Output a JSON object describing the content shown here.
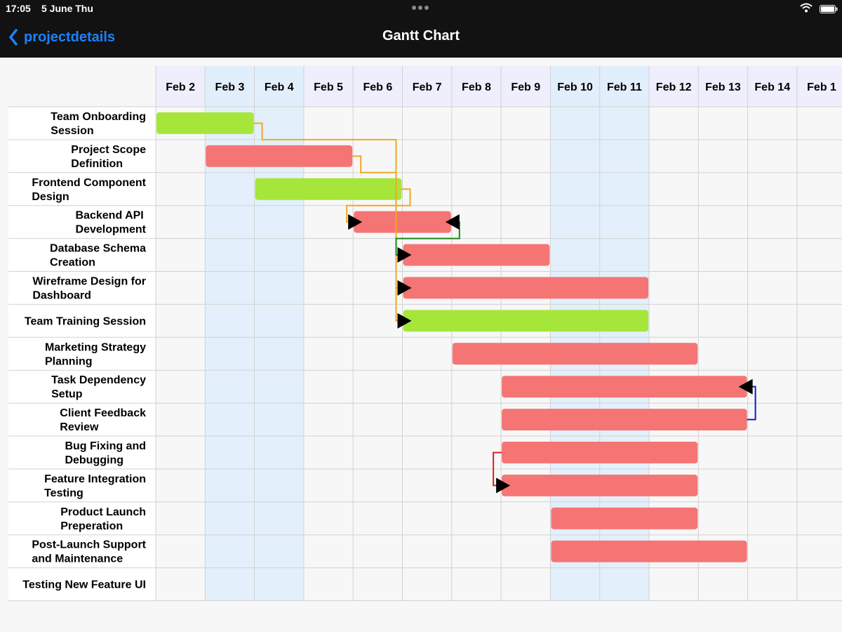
{
  "status_bar": {
    "time": "17:05",
    "date": "5 June Thu",
    "wifi_icon": "wifi-icon",
    "battery_icon": "battery-icon",
    "multitask_icon": "ellipsis-icon"
  },
  "nav": {
    "back_label": "projectdetails",
    "back_icon": "chevron-left-icon",
    "title": "Gantt Chart"
  },
  "colors": {
    "green_bar": "#a6e63a",
    "red_bar": "#f57575",
    "weekend_column": "#e3f0fb",
    "header_weekday": "#eeeefc",
    "header_weekend": "#e1eefb",
    "grid": "#d2d2d2",
    "dependency_orange": "#f0a820",
    "dependency_green": "#1a8a1a",
    "dependency_blue": "#1616c8",
    "dependency_red": "#e01e1e"
  },
  "chart_data": {
    "type": "gantt",
    "dates": [
      "Feb 2",
      "Feb 3",
      "Feb 4",
      "Feb 5",
      "Feb 6",
      "Feb 7",
      "Feb 8",
      "Feb 9",
      "Feb 10",
      "Feb 11",
      "Feb 12",
      "Feb 13",
      "Feb 14",
      "Feb 1"
    ],
    "weekend_dates": [
      "Feb 3",
      "Feb 4",
      "Feb 10",
      "Feb 11"
    ],
    "tasks": [
      {
        "name": "Team Onboarding Session",
        "lines": [
          "Team Onboarding",
          "Session"
        ],
        "start": "Feb 2",
        "end": "Feb 3",
        "color": "green"
      },
      {
        "name": "Project Scope Definition",
        "lines": [
          "Project Scope",
          "Definition"
        ],
        "start": "Feb 3",
        "end": "Feb 5",
        "color": "red"
      },
      {
        "name": "Frontend Component Design",
        "lines": [
          "Frontend Component",
          "Design"
        ],
        "start": "Feb 4",
        "end": "Feb 6",
        "color": "green"
      },
      {
        "name": "Backend API Development",
        "lines": [
          "Backend API",
          "Development"
        ],
        "start": "Feb 6",
        "end": "Feb 7",
        "color": "red"
      },
      {
        "name": "Database Schema Creation",
        "lines": [
          "Database Schema",
          "Creation"
        ],
        "start": "Feb 7",
        "end": "Feb 9",
        "color": "red"
      },
      {
        "name": "Wireframe Design for Dashboard",
        "lines": [
          "Wireframe Design for",
          "Dashboard"
        ],
        "start": "Feb 7",
        "end": "Feb 11",
        "color": "red"
      },
      {
        "name": "Team Training Session",
        "lines": [
          "Team Training Session"
        ],
        "start": "Feb 7",
        "end": "Feb 11",
        "color": "green"
      },
      {
        "name": "Marketing Strategy Planning",
        "lines": [
          "Marketing Strategy",
          "Planning"
        ],
        "start": "Feb 8",
        "end": "Feb 12",
        "color": "red"
      },
      {
        "name": "Task Dependency Setup",
        "lines": [
          "Task Dependency",
          "Setup"
        ],
        "start": "Feb 9",
        "end": "Feb 13",
        "color": "red"
      },
      {
        "name": "Client Feedback Review",
        "lines": [
          "Client Feedback",
          "Review"
        ],
        "start": "Feb 9",
        "end": "Feb 13",
        "color": "red"
      },
      {
        "name": "Bug Fixing and Debugging",
        "lines": [
          "Bug Fixing and",
          "Debugging"
        ],
        "start": "Feb 9",
        "end": "Feb 12",
        "color": "red"
      },
      {
        "name": "Feature Integration Testing",
        "lines": [
          "Feature Integration",
          "Testing"
        ],
        "start": "Feb 9",
        "end": "Feb 12",
        "color": "red"
      },
      {
        "name": "Product Launch Preperation",
        "lines": [
          "Product Launch",
          "Preperation"
        ],
        "start": "Feb 10",
        "end": "Feb 12",
        "color": "red"
      },
      {
        "name": "Post-Launch Support and Maintenance",
        "lines": [
          "Post-Launch Support",
          "and Maintenance"
        ],
        "start": "Feb 10",
        "end": "Feb 13",
        "color": "red"
      },
      {
        "name": "Testing New Feature UI",
        "lines": [
          "Testing New Feature UI"
        ],
        "start": null,
        "end": null,
        "color": null
      }
    ],
    "dependencies": [
      {
        "from": "Team Onboarding Session",
        "to": "Team Training Session",
        "type": "finish-to-start",
        "color": "orange"
      },
      {
        "from": "Project Scope Definition",
        "to": "Wireframe Design for Dashboard",
        "type": "finish-to-start",
        "color": "orange"
      },
      {
        "from": "Frontend Component Design",
        "to": "Backend API Development",
        "type": "finish-to-start",
        "color": "orange"
      },
      {
        "from": "Backend API Development",
        "to": "Database Schema Creation",
        "type": "finish-to-start",
        "color": "green"
      },
      {
        "from": "Client Feedback Review",
        "to": "Task Dependency Setup",
        "type": "finish-to-finish",
        "color": "blue"
      },
      {
        "from": "Bug Fixing and Debugging",
        "to": "Feature Integration Testing",
        "type": "start-to-start",
        "color": "red"
      }
    ]
  }
}
